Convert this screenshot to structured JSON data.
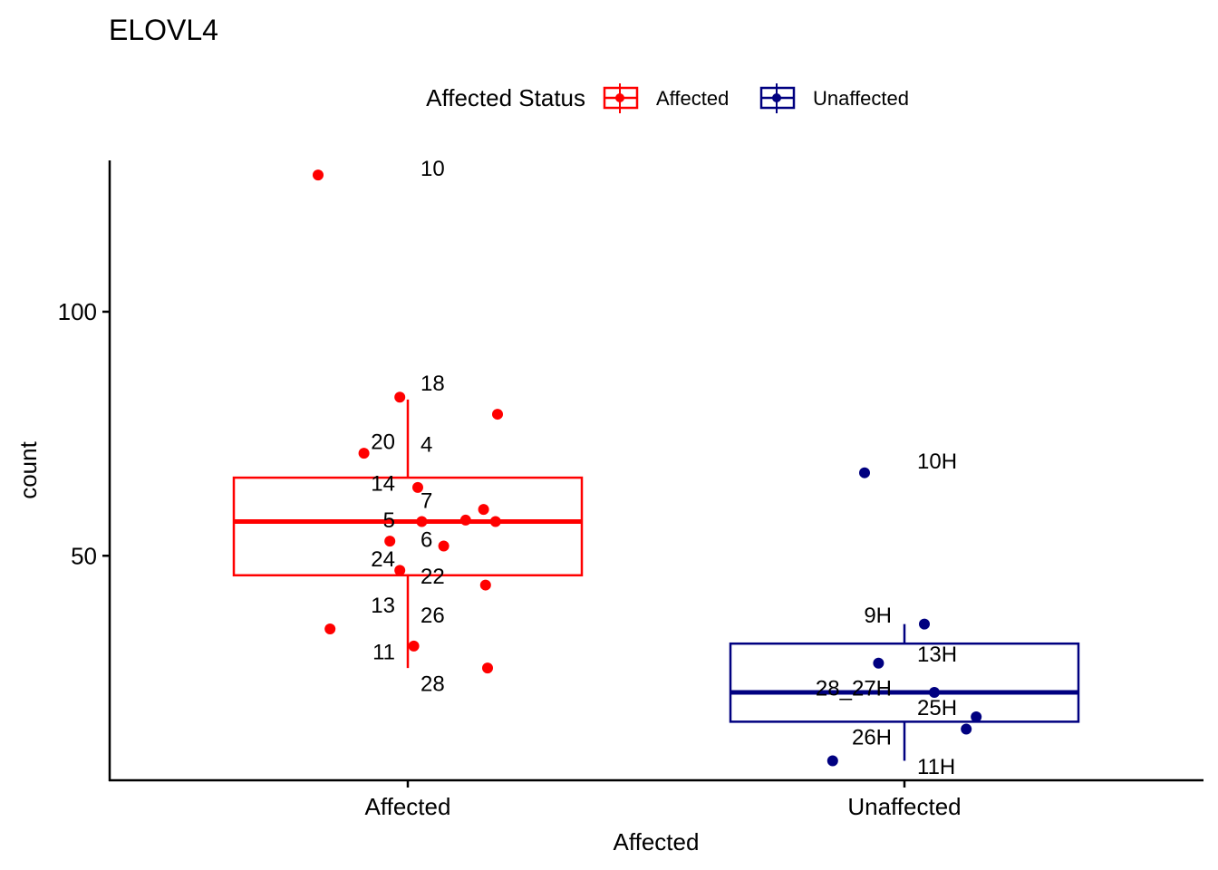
{
  "chart_data": {
    "type": "boxplot",
    "title": "ELOVL4",
    "xlabel": "Affected",
    "ylabel": "count",
    "categories": [
      "Affected",
      "Unaffected"
    ],
    "yticks": [
      50,
      100
    ],
    "ylim": [
      4,
      131
    ],
    "grid": false,
    "legend": {
      "title": "Affected Status",
      "position": "top",
      "entries": [
        {
          "label": "Affected",
          "color": "#FF0000"
        },
        {
          "label": "Unaffected",
          "color": "#000080"
        }
      ]
    },
    "series": [
      {
        "name": "Affected",
        "category": "Affected",
        "color": "#FF0000",
        "box": {
          "whisker_low": 27,
          "q1": 46,
          "median": 57,
          "q3": 66,
          "whisker_high": 82
        },
        "points": [
          {
            "jitter": -0.45,
            "y": 128
          },
          {
            "jitter": -0.04,
            "y": 82.5
          },
          {
            "jitter": 0.45,
            "y": 79
          },
          {
            "jitter": -0.22,
            "y": 71
          },
          {
            "jitter": 0.05,
            "y": 64
          },
          {
            "jitter": 0.38,
            "y": 59.5
          },
          {
            "jitter": 0.29,
            "y": 57.3
          },
          {
            "jitter": 0.44,
            "y": 57
          },
          {
            "jitter": 0.07,
            "y": 57
          },
          {
            "jitter": -0.09,
            "y": 53
          },
          {
            "jitter": 0.18,
            "y": 52
          },
          {
            "jitter": -0.04,
            "y": 47
          },
          {
            "jitter": 0.39,
            "y": 44
          },
          {
            "jitter": -0.39,
            "y": 35
          },
          {
            "jitter": 0.03,
            "y": 31.5
          },
          {
            "jitter": 0.4,
            "y": 27
          }
        ],
        "labels": [
          {
            "text": "10",
            "side": "right",
            "y": 129.5
          },
          {
            "text": "18",
            "side": "right",
            "y": 85.5
          },
          {
            "text": "20",
            "side": "left",
            "y": 73.5
          },
          {
            "text": "4",
            "side": "right",
            "y": 73
          },
          {
            "text": "14",
            "side": "left",
            "y": 65
          },
          {
            "text": "7",
            "side": "right",
            "y": 61.5
          },
          {
            "text": "5",
            "side": "left",
            "y": 57.5
          },
          {
            "text": "6",
            "side": "right",
            "y": 53.5
          },
          {
            "text": "24",
            "side": "left",
            "y": 49.5
          },
          {
            "text": "22",
            "side": "right",
            "y": 46
          },
          {
            "text": "13",
            "side": "left",
            "y": 40
          },
          {
            "text": "26",
            "side": "right",
            "y": 38
          },
          {
            "text": "11",
            "side": "left",
            "y": 30.5
          },
          {
            "text": "28",
            "side": "right",
            "y": 24
          }
        ]
      },
      {
        "name": "Unaffected",
        "category": "Unaffected",
        "color": "#000080",
        "box": {
          "whisker_low": 8,
          "q1": 16,
          "median": 22,
          "q3": 32,
          "whisker_high": 36
        },
        "points": [
          {
            "jitter": -0.2,
            "y": 67
          },
          {
            "jitter": 0.1,
            "y": 36
          },
          {
            "jitter": -0.13,
            "y": 28
          },
          {
            "jitter": 0.15,
            "y": 22
          },
          {
            "jitter": 0.36,
            "y": 17
          },
          {
            "jitter": 0.31,
            "y": 14.5
          },
          {
            "jitter": -0.36,
            "y": 8
          }
        ],
        "labels": [
          {
            "text": "10H",
            "side": "right",
            "y": 69.5
          },
          {
            "text": "9H",
            "side": "left",
            "y": 38
          },
          {
            "text": "13H",
            "side": "right",
            "y": 30
          },
          {
            "text": "28_27H",
            "side": "left",
            "y": 23
          },
          {
            "text": "25H",
            "side": "right",
            "y": 19
          },
          {
            "text": "26H",
            "side": "left",
            "y": 13
          },
          {
            "text": "11H",
            "side": "right",
            "y": 7
          }
        ]
      }
    ]
  }
}
